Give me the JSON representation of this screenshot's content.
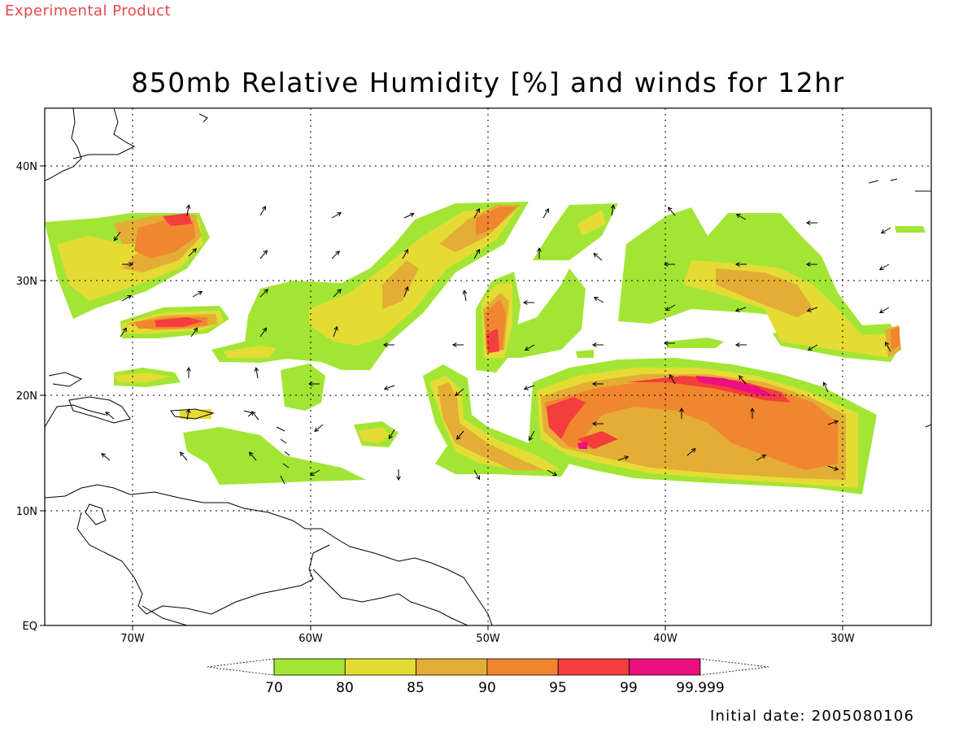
{
  "header": {
    "product_label": "Experimental Product",
    "title": "850mb Relative Humidity [%] and winds for 12hr"
  },
  "footer": {
    "initial_date": "Initial date: 2005080106"
  },
  "axes": {
    "lat_labels": [
      "40N",
      "30N",
      "20N",
      "10N",
      "EQ"
    ],
    "lon_labels": [
      "70W",
      "60W",
      "50W",
      "40W",
      "30W"
    ]
  },
  "colorbar": {
    "labels": [
      "70",
      "80",
      "85",
      "90",
      "95",
      "99",
      "99.999"
    ],
    "colors": [
      "#a3e535",
      "#e4dc35",
      "#e4ad35",
      "#f0862f",
      "#f43d3d",
      "#ec0f7f"
    ]
  },
  "map_style": {
    "frame_color": "#000000",
    "grid": "dotted",
    "coastline_color": "#000000"
  }
}
